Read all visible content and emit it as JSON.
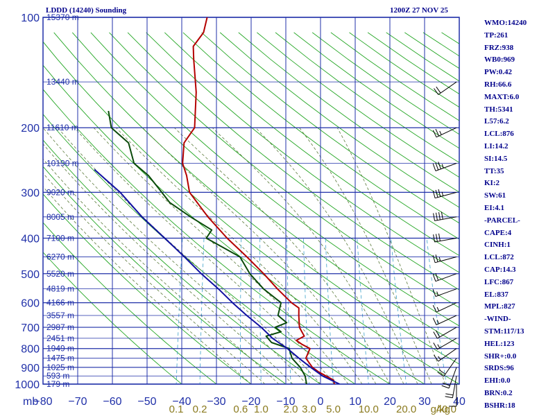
{
  "header": {
    "station": "LDDD (14240) Sounding",
    "time": "1200Z 27 NOV 25"
  },
  "indices": [
    "WMO:14240",
    "TP:261",
    "FRZ:938",
    "WB0:969",
    "PW:0.42",
    "RH:66.6",
    "MAXT:6.0",
    "TH:5341",
    "L57:6.2",
    "LCL:876",
    "LI:14.2",
    "SI:14.5",
    "TT:35",
    "KI:2",
    "SW:61",
    "EI:4.1",
    "-PARCEL-",
    "CAPE:4",
    "CINH:1",
    "LCL:872",
    "CAP:14.3",
    "LFC:867",
    "EL:837",
    "MPL:827",
    "-WIND-",
    "STM:117/13",
    "HEL:123",
    "SHR+:0.0",
    "SRDS:96",
    "EHI:0.0",
    "BRN:0.2",
    "BSHR:18"
  ],
  "chart_data": {
    "type": "line",
    "title": "LDDD (14240) Sounding",
    "subtitle": "1200Z 27 NOV 25",
    "pressure_unit": "mb",
    "mixing_ratio_unit": "g/kg",
    "xlim": [
      -80,
      40
    ],
    "ylim": [
      1000,
      100
    ],
    "y_scale": "log",
    "grid": true,
    "pressure_ticks": [
      {
        "p": 100,
        "label": "100"
      },
      {
        "p": 200,
        "label": "200"
      },
      {
        "p": 300,
        "label": "300"
      },
      {
        "p": 400,
        "label": "400"
      },
      {
        "p": 500,
        "label": "500"
      },
      {
        "p": 600,
        "label": "600"
      },
      {
        "p": 700,
        "label": "700"
      },
      {
        "p": 800,
        "label": "800"
      },
      {
        "p": 900,
        "label": "900"
      },
      {
        "p": 1000,
        "label": "1000"
      }
    ],
    "temperature_ticks": [
      {
        "t": -80,
        "label": "−80"
      },
      {
        "t": -70,
        "label": "−70"
      },
      {
        "t": -60,
        "label": "−60"
      },
      {
        "t": -50,
        "label": "−50"
      },
      {
        "t": -40,
        "label": "−40"
      },
      {
        "t": -30,
        "label": "−30"
      },
      {
        "t": -20,
        "label": "−20"
      },
      {
        "t": -10,
        "label": "−10"
      },
      {
        "t": 0,
        "label": "0"
      },
      {
        "t": 10,
        "label": "10"
      },
      {
        "t": 20,
        "label": "20"
      },
      {
        "t": 30,
        "label": "30"
      },
      {
        "t": 40,
        "label": "40"
      }
    ],
    "mixing_ratio_ticks": [
      {
        "w": 0.1,
        "label": "0.1"
      },
      {
        "w": 0.2,
        "label": "0.2"
      },
      {
        "w": 0.6,
        "label": "0.6"
      },
      {
        "w": 1.0,
        "label": "1.0"
      },
      {
        "w": 2.0,
        "label": "2.0"
      },
      {
        "w": 3.0,
        "label": "3.0"
      },
      {
        "w": 5.0,
        "label": "5.0"
      },
      {
        "w": 10.0,
        "label": "10.0"
      },
      {
        "w": 20.0,
        "label": "20.0"
      },
      {
        "w": 40.0,
        "label": "40.0"
      }
    ],
    "height_labels": [
      {
        "p": 100,
        "label": "15370 m"
      },
      {
        "p": 150,
        "label": "13440 m"
      },
      {
        "p": 200,
        "label": "11610 m"
      },
      {
        "p": 250,
        "label": "10190 m"
      },
      {
        "p": 300,
        "label": "9020 m"
      },
      {
        "p": 350,
        "label": "8005 m"
      },
      {
        "p": 400,
        "label": "7100 m"
      },
      {
        "p": 450,
        "label": "6270 m"
      },
      {
        "p": 500,
        "label": "5520 m"
      },
      {
        "p": 550,
        "label": "4819 m"
      },
      {
        "p": 600,
        "label": "4166 m"
      },
      {
        "p": 650,
        "label": "3557 m"
      },
      {
        "p": 700,
        "label": "2987 m"
      },
      {
        "p": 750,
        "label": "2451 m"
      },
      {
        "p": 800,
        "label": "1949 m"
      },
      {
        "p": 850,
        "label": "1475 m"
      },
      {
        "p": 900,
        "label": "1025 m"
      },
      {
        "p": 950,
        "label": "593 m"
      },
      {
        "p": 1000,
        "label": "179 m"
      }
    ],
    "series": [
      {
        "key": "temperature",
        "color": "#b40000",
        "points": [
          {
            "p": 1000,
            "t": 4
          },
          {
            "p": 975,
            "t": 3.5
          },
          {
            "p": 950,
            "t": 1
          },
          {
            "p": 925,
            "t": -1.5
          },
          {
            "p": 900,
            "t": -3.5
          },
          {
            "p": 850,
            "t": -6
          },
          {
            "p": 800,
            "t": -5.5
          },
          {
            "p": 780,
            "t": -8
          },
          {
            "p": 760,
            "t": -10
          },
          {
            "p": 740,
            "t": -8
          },
          {
            "p": 720,
            "t": -9
          },
          {
            "p": 700,
            "t": -10
          },
          {
            "p": 650,
            "t": -11
          },
          {
            "p": 620,
            "t": -11.5
          },
          {
            "p": 600,
            "t": -14
          },
          {
            "p": 550,
            "t": -19
          },
          {
            "p": 500,
            "t": -24
          },
          {
            "p": 450,
            "t": -30
          },
          {
            "p": 400,
            "t": -37
          },
          {
            "p": 350,
            "t": -44
          },
          {
            "p": 300,
            "t": -51
          },
          {
            "p": 270,
            "t": -53
          },
          {
            "p": 250,
            "t": -55
          },
          {
            "p": 220,
            "t": -56
          },
          {
            "p": 200,
            "t": -54
          },
          {
            "p": 160,
            "t": -56
          },
          {
            "p": 130,
            "t": -59
          },
          {
            "p": 120,
            "t": -60
          },
          {
            "p": 110,
            "t": -58
          },
          {
            "p": 100,
            "t": -58
          }
        ]
      },
      {
        "key": "dewpoint",
        "color": "#0a4a0a",
        "points": [
          {
            "p": 1000,
            "t": -4
          },
          {
            "p": 950,
            "t": -5
          },
          {
            "p": 900,
            "t": -7
          },
          {
            "p": 850,
            "t": -10
          },
          {
            "p": 800,
            "t": -11.5
          },
          {
            "p": 770,
            "t": -17
          },
          {
            "p": 740,
            "t": -19
          },
          {
            "p": 720,
            "t": -15
          },
          {
            "p": 700,
            "t": -17
          },
          {
            "p": 680,
            "t": -14
          },
          {
            "p": 650,
            "t": -17
          },
          {
            "p": 620,
            "t": -17
          },
          {
            "p": 600,
            "t": -17
          },
          {
            "p": 550,
            "t": -23
          },
          {
            "p": 500,
            "t": -28
          },
          {
            "p": 450,
            "t": -32
          },
          {
            "p": 400,
            "t": -43
          },
          {
            "p": 380,
            "t": -42
          },
          {
            "p": 350,
            "t": -49
          },
          {
            "p": 320,
            "t": -56
          },
          {
            "p": 300,
            "t": -59
          },
          {
            "p": 270,
            "t": -64
          },
          {
            "p": 250,
            "t": -69
          },
          {
            "p": 220,
            "t": -72
          },
          {
            "p": 200,
            "t": -78
          },
          {
            "p": 180,
            "t": -80
          }
        ]
      },
      {
        "key": "parcel",
        "color": "#1010a0",
        "points": [
          {
            "p": 1000,
            "t": 5.5
          },
          {
            "p": 950,
            "t": 0
          },
          {
            "p": 900,
            "t": -4
          },
          {
            "p": 850,
            "t": -8
          },
          {
            "p": 800,
            "t": -12
          },
          {
            "p": 750,
            "t": -17
          },
          {
            "p": 700,
            "t": -21
          },
          {
            "p": 650,
            "t": -26
          },
          {
            "p": 600,
            "t": -31
          },
          {
            "p": 550,
            "t": -36
          },
          {
            "p": 500,
            "t": -42
          },
          {
            "p": 450,
            "t": -48
          },
          {
            "p": 400,
            "t": -55
          },
          {
            "p": 350,
            "t": -63
          },
          {
            "p": 300,
            "t": -71
          },
          {
            "p": 260,
            "t": -80
          }
        ]
      }
    ],
    "wind_barbs": [
      {
        "p": 150,
        "dir": 235,
        "spd": 20
      },
      {
        "p": 200,
        "dir": 245,
        "spd": 25
      },
      {
        "p": 250,
        "dir": 250,
        "spd": 35
      },
      {
        "p": 300,
        "dir": 255,
        "spd": 35
      },
      {
        "p": 350,
        "dir": 260,
        "spd": 40
      },
      {
        "p": 400,
        "dir": 260,
        "spd": 30
      },
      {
        "p": 450,
        "dir": 255,
        "spd": 25
      },
      {
        "p": 500,
        "dir": 250,
        "spd": 20
      },
      {
        "p": 550,
        "dir": 250,
        "spd": 15
      },
      {
        "p": 600,
        "dir": 245,
        "spd": 15
      },
      {
        "p": 650,
        "dir": 245,
        "spd": 15
      },
      {
        "p": 700,
        "dir": 240,
        "spd": 20
      },
      {
        "p": 750,
        "dir": 240,
        "spd": 15
      },
      {
        "p": 800,
        "dir": 235,
        "spd": 15
      },
      {
        "p": 850,
        "dir": 215,
        "spd": 20
      },
      {
        "p": 900,
        "dir": 200,
        "spd": 20
      },
      {
        "p": 950,
        "dir": 190,
        "spd": 20
      },
      {
        "p": 1000,
        "dir": 180,
        "spd": 10
      }
    ]
  }
}
